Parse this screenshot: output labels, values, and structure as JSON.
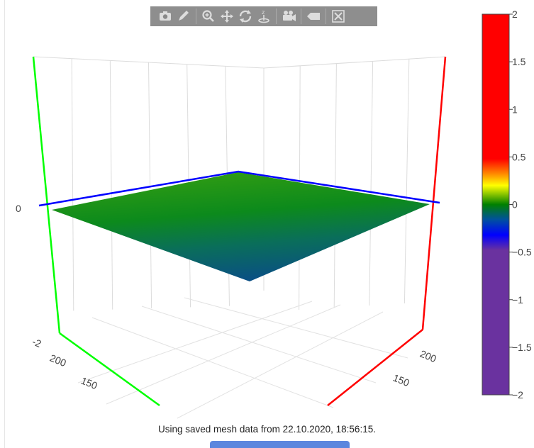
{
  "status": {
    "message": "Using saved mesh data from 22.10.2020, 18:56:15.",
    "button_label": ""
  },
  "modebar": {
    "buttons": [
      {
        "icon": "camera-icon",
        "title": "Download plot as a png"
      },
      {
        "icon": "pencil-icon",
        "title": "Edit"
      },
      {
        "icon": "zoom-icon",
        "title": "Zoom"
      },
      {
        "icon": "pan-icon",
        "title": "Pan"
      },
      {
        "icon": "orbit-rotation-icon",
        "title": "Orbital rotation"
      },
      {
        "icon": "turntable-icon",
        "title": "Turntable rotation"
      },
      {
        "icon": "video-camera-icon",
        "title": "Reset camera"
      },
      {
        "icon": "hover-tag-icon",
        "title": "Toggle hover labels"
      },
      {
        "icon": "autoscale-icon",
        "title": "Reset axes"
      }
    ]
  },
  "chart_data": {
    "type": "surface",
    "title": "",
    "z_range": [
      -2,
      2
    ],
    "axes": {
      "x": {
        "visible_ticks": [
          "200",
          "150"
        ],
        "line_color": "#ff0000"
      },
      "y": {
        "visible_ticks": [
          "200",
          "150"
        ],
        "line_color": "#00ff00"
      },
      "z": {
        "visible_ticks": [
          "-2",
          "0"
        ],
        "line_color": "#0000ff"
      }
    },
    "surface": {
      "z_values_estimate": [
        [
          -0.35,
          0.0
        ],
        [
          -0.05,
          0.1
        ]
      ],
      "color": "z"
    },
    "colorbar": {
      "range": [
        -2,
        2
      ],
      "ticks": [
        "2",
        "1.5",
        "1",
        "0.5",
        "0",
        "−0.5",
        "−1",
        "−1.5",
        "−2"
      ],
      "tick_values": [
        2,
        1.5,
        1,
        0.5,
        0,
        -0.5,
        -1,
        -1.5,
        -2
      ],
      "colorscale": [
        [
          0.0,
          "#6a329f"
        ],
        [
          0.38,
          "#6a329f"
        ],
        [
          0.42,
          "#0000ff"
        ],
        [
          0.46,
          "#0050a0"
        ],
        [
          0.5,
          "#008000"
        ],
        [
          0.55,
          "#ffff00"
        ],
        [
          0.58,
          "#ff8c00"
        ],
        [
          0.62,
          "#ff0000"
        ],
        [
          1.0,
          "#ff0000"
        ]
      ]
    }
  }
}
